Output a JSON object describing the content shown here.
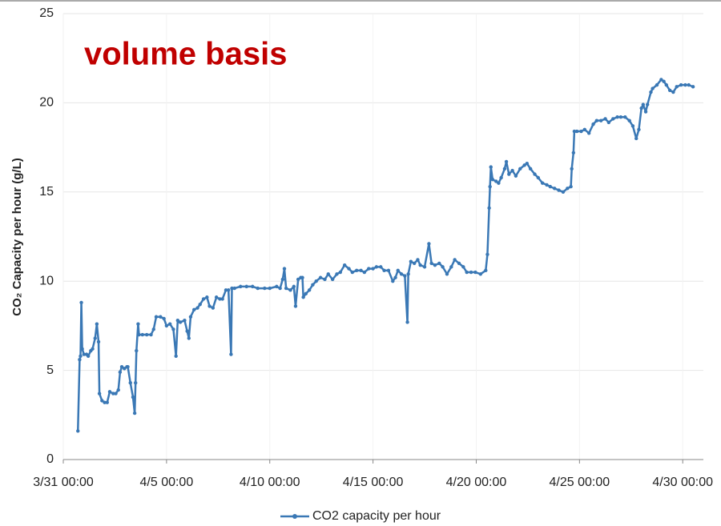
{
  "chart_data": {
    "type": "line",
    "annotations": [
      "volume basis"
    ],
    "ylabel": "CO₂ Capacity per hour (g/L)",
    "ylim": [
      0,
      25
    ],
    "yticks": [
      0,
      5,
      10,
      15,
      20,
      25
    ],
    "xlim": [
      "3/31 00:00",
      "5/1 00:00"
    ],
    "xticks": [
      "3/31 00:00",
      "4/5 00:00",
      "4/10 00:00",
      "4/15 00:00",
      "4/20 00:00",
      "4/25 00:00",
      "4/30 00:00"
    ],
    "grid": true,
    "legend": "bottom",
    "x": [
      "3/31 17:00",
      "3/31 19:00",
      "3/31 20:00",
      "3/31 21:00",
      "3/31 22:00",
      "4/1 00:00",
      "4/1 03:00",
      "4/1 05:00",
      "4/1 08:00",
      "4/1 10:00",
      "4/1 13:00",
      "4/1 15:00",
      "4/1 17:00",
      "4/1 18:00",
      "4/1 21:00",
      "4/2 00:00",
      "4/2 03:00",
      "4/2 06:00",
      "4/2 10:00",
      "4/2 13:00",
      "4/2 16:00",
      "4/2 18:00",
      "4/2 20:00",
      "4/2 23:00",
      "4/3 02:00",
      "4/3 03:00",
      "4/3 06:00",
      "4/3 09:00",
      "4/3 11:00",
      "4/3 12:00",
      "4/3 13:00",
      "4/3 15:00",
      "4/3 16:00",
      "4/3 20:00",
      "4/4 01:00",
      "4/4 06:00",
      "4/4 09:00",
      "4/4 12:00",
      "4/4 17:00",
      "4/4 21:00",
      "4/5 00:00",
      "4/5 04:00",
      "4/5 08:00",
      "4/5 11:00",
      "4/5 13:00",
      "4/5 16:00",
      "4/5 21:00",
      "4/6 00:00",
      "4/6 02:00",
      "4/6 04:00",
      "4/6 08:00",
      "4/6 12:00",
      "4/6 15:00",
      "4/6 19:00",
      "4/6 23:00",
      "4/7 02:00",
      "4/7 06:00",
      "4/7 10:00",
      "4/7 14:00",
      "4/7 17:00",
      "4/7 21:00",
      "4/8 00:00",
      "4/8 03:00",
      "4/8 04:00",
      "4/8 07:00",
      "4/8 14:00",
      "4/8 21:00",
      "4/9 04:00",
      "4/9 10:00",
      "4/9 18:00",
      "4/10 00:00",
      "4/10 08:00",
      "4/10 12:00",
      "4/10 15:00",
      "4/10 17:00",
      "4/10 19:00",
      "4/11 00:00",
      "4/11 04:00",
      "4/11 06:00",
      "4/11 09:00",
      "4/11 12:00",
      "4/11 14:00",
      "4/11 15:00",
      "4/11 18:00",
      "4/11 22:00",
      "4/12 02:00",
      "4/12 06:00",
      "4/12 11:00",
      "4/12 16:00",
      "4/12 20:00",
      "4/13 01:00",
      "4/13 06:00",
      "4/13 10:00",
      "4/13 15:00",
      "4/13 20:00",
      "4/14 00:00",
      "4/14 05:00",
      "4/14 10:00",
      "4/14 14:00",
      "4/14 19:00",
      "4/15 00:00",
      "4/15 04:00",
      "4/15 09:00",
      "4/15 13:00",
      "4/15 18:00",
      "4/15 23:00",
      "4/16 02:00",
      "4/16 05:00",
      "4/16 09:00",
      "4/16 13:00",
      "4/16 16:00",
      "4/16 17:00",
      "4/16 20:00",
      "4/17 00:00",
      "4/17 04:00",
      "4/17 07:00",
      "4/17 12:00",
      "4/17 17:00",
      "4/17 20:00",
      "4/18 00:00",
      "4/18 05:00",
      "4/18 09:00",
      "4/18 14:00",
      "4/18 19:00",
      "4/18 23:00",
      "4/19 04:00",
      "4/19 09:00",
      "4/19 13:00",
      "4/19 18:00",
      "4/19 23:00",
      "4/20 05:00",
      "4/20 11:00",
      "4/20 13:00",
      "4/20 15:00",
      "4/20 16:00",
      "4/20 17:00",
      "4/20 19:00",
      "4/20 23:00",
      "4/21 02:00",
      "4/21 05:00",
      "4/21 09:00",
      "4/21 11:00",
      "4/21 14:00",
      "4/21 18:00",
      "4/21 22:00",
      "4/22 03:00",
      "4/22 08:00",
      "4/22 11:00",
      "4/22 15:00",
      "4/22 20:00",
      "4/23 00:00",
      "4/23 05:00",
      "4/23 10:00",
      "4/23 14:00",
      "4/23 19:00",
      "4/24 00:00",
      "4/24 05:00",
      "4/24 10:00",
      "4/24 14:00",
      "4/24 15:00",
      "4/24 17:00",
      "4/24 18:00",
      "4/24 21:00",
      "4/25 02:00",
      "4/25 06:00",
      "4/25 11:00",
      "4/25 16:00",
      "4/25 20:00",
      "4/26 01:00",
      "4/26 06:00",
      "4/26 10:00",
      "4/26 15:00",
      "4/26 20:00",
      "4/27 00:00",
      "4/27 05:00",
      "4/27 10:00",
      "4/27 14:00",
      "4/27 18:00",
      "4/27 21:00",
      "4/28 00:00",
      "4/28 02:00",
      "4/28 05:00",
      "4/28 07:00",
      "4/28 11:00",
      "4/28 13:00",
      "4/28 18:00",
      "4/28 23:00",
      "4/29 02:00",
      "4/29 05:00",
      "4/29 09:00",
      "4/29 13:00",
      "4/29 17:00",
      "4/29 22:00",
      "4/30 03:00",
      "4/30 07:00",
      "4/30 12:00"
    ],
    "series": [
      {
        "name": "CO2 capacity per hour",
        "color": "#3a78b5",
        "values": [
          1.6,
          5.6,
          5.8,
          8.8,
          6.2,
          5.9,
          5.9,
          5.8,
          6.1,
          6.2,
          6.8,
          7.6,
          6.6,
          3.7,
          3.3,
          3.2,
          3.2,
          3.8,
          3.7,
          3.7,
          3.9,
          4.9,
          5.2,
          5.1,
          5.2,
          5.2,
          4.3,
          3.5,
          2.6,
          4.3,
          6.1,
          7.6,
          7.0,
          7.0,
          7.0,
          7.0,
          7.3,
          8.0,
          8.0,
          7.9,
          7.5,
          7.6,
          7.3,
          5.8,
          7.8,
          7.7,
          7.8,
          7.2,
          6.8,
          8.0,
          8.4,
          8.5,
          8.7,
          9.0,
          9.1,
          8.6,
          8.5,
          9.1,
          9.0,
          9.0,
          9.5,
          9.5,
          5.9,
          9.6,
          9.6,
          9.7,
          9.7,
          9.7,
          9.6,
          9.6,
          9.6,
          9.7,
          9.6,
          10.1,
          10.7,
          9.6,
          9.5,
          9.7,
          8.6,
          10.1,
          10.2,
          10.2,
          9.1,
          9.3,
          9.5,
          9.8,
          10.0,
          10.2,
          10.1,
          10.4,
          10.1,
          10.4,
          10.5,
          10.9,
          10.7,
          10.5,
          10.6,
          10.6,
          10.5,
          10.7,
          10.7,
          10.8,
          10.8,
          10.6,
          10.6,
          10.0,
          10.2,
          10.6,
          10.4,
          10.3,
          7.7,
          10.4,
          11.1,
          11.0,
          11.2,
          10.9,
          10.8,
          12.1,
          11.0,
          10.9,
          11.0,
          10.8,
          10.4,
          10.8,
          11.2,
          11.0,
          10.8,
          10.5,
          10.5,
          10.5,
          10.4,
          10.6,
          11.5,
          14.1,
          15.3,
          16.4,
          15.7,
          15.6,
          15.5,
          15.8,
          16.3,
          16.7,
          16.0,
          16.2,
          15.9,
          16.3,
          16.5,
          16.6,
          16.3,
          16.0,
          15.8,
          15.5,
          15.4,
          15.3,
          15.2,
          15.1,
          15.0,
          15.2,
          15.3,
          16.3,
          17.2,
          18.4,
          18.4,
          18.4,
          18.5,
          18.3,
          18.8,
          19.0,
          19.0,
          19.1,
          18.9,
          19.1,
          19.2,
          19.2,
          19.2,
          19.0,
          18.7,
          18.0,
          18.5,
          19.7,
          19.9,
          19.5,
          19.9,
          20.6,
          20.8,
          21.0,
          21.3,
          21.2,
          21.0,
          20.7,
          20.6,
          20.9,
          21.0,
          21.0,
          21.0,
          20.9
        ]
      }
    ]
  }
}
